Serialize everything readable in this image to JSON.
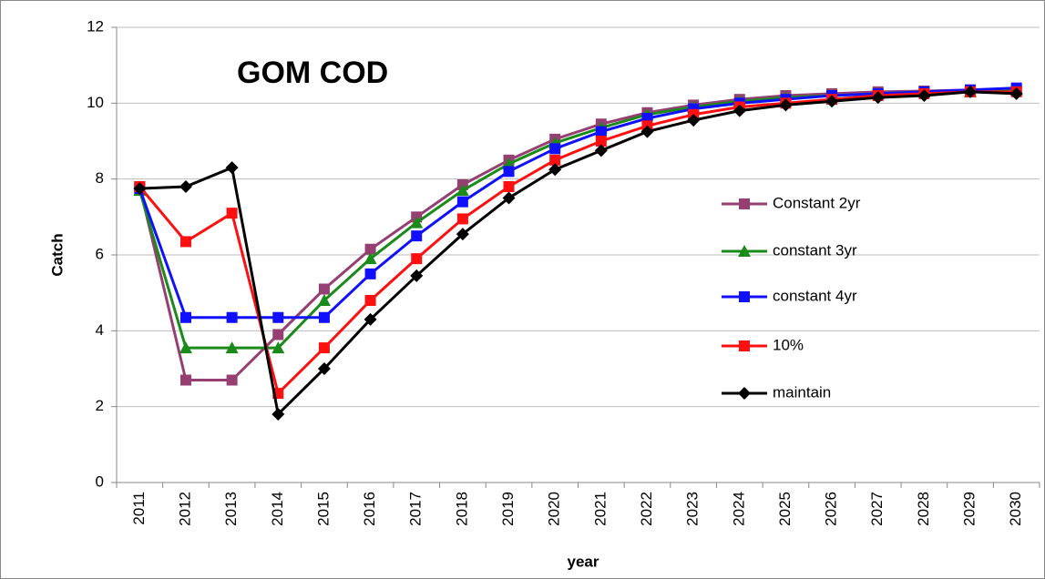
{
  "chart_data": {
    "type": "line",
    "title": "GOM COD",
    "x_label": "year",
    "y_label": "Catch",
    "categories": [
      "2011",
      "2012",
      "2013",
      "2014",
      "2015",
      "2016",
      "2017",
      "2018",
      "2019",
      "2020",
      "2021",
      "2022",
      "2023",
      "2024",
      "2025",
      "2026",
      "2027",
      "2028",
      "2029",
      "2030"
    ],
    "series": [
      {
        "name": "Constant 2yr",
        "color": "#953f73",
        "marker": "square",
        "values": [
          7.8,
          2.7,
          2.7,
          3.9,
          5.1,
          6.15,
          7.0,
          7.85,
          8.5,
          9.05,
          9.45,
          9.75,
          9.95,
          10.1,
          10.2,
          10.25,
          10.3,
          10.32,
          10.35,
          10.35
        ]
      },
      {
        "name": "constant 3yr",
        "color": "#1a8a1a",
        "marker": "triangle",
        "values": [
          7.7,
          3.55,
          3.55,
          3.55,
          4.8,
          5.9,
          6.85,
          7.7,
          8.4,
          8.95,
          9.35,
          9.7,
          9.9,
          10.05,
          10.15,
          10.2,
          10.25,
          10.3,
          10.3,
          10.35
        ]
      },
      {
        "name": "constant 4yr",
        "color": "#1010ff",
        "marker": "square",
        "values": [
          7.75,
          4.35,
          4.35,
          4.35,
          4.35,
          5.5,
          6.5,
          7.4,
          8.2,
          8.8,
          9.25,
          9.6,
          9.85,
          10.0,
          10.1,
          10.2,
          10.25,
          10.3,
          10.35,
          10.4
        ]
      },
      {
        "name": "10%",
        "color": "#ff1010",
        "marker": "square",
        "values": [
          7.8,
          6.35,
          7.1,
          2.35,
          3.55,
          4.8,
          5.9,
          6.95,
          7.8,
          8.5,
          9.0,
          9.4,
          9.7,
          9.9,
          10.0,
          10.1,
          10.2,
          10.25,
          10.3,
          10.3
        ]
      },
      {
        "name": "maintain",
        "color": "#000000",
        "marker": "diamond",
        "values": [
          7.75,
          7.8,
          8.3,
          1.8,
          3.0,
          4.3,
          5.45,
          6.55,
          7.5,
          8.25,
          8.75,
          9.25,
          9.55,
          9.8,
          9.95,
          10.05,
          10.15,
          10.2,
          10.3,
          10.25
        ]
      }
    ],
    "ylim": [
      0,
      12
    ],
    "yticks": [
      0,
      2,
      4,
      6,
      8,
      10,
      12
    ],
    "grid": true,
    "legend": "right"
  }
}
